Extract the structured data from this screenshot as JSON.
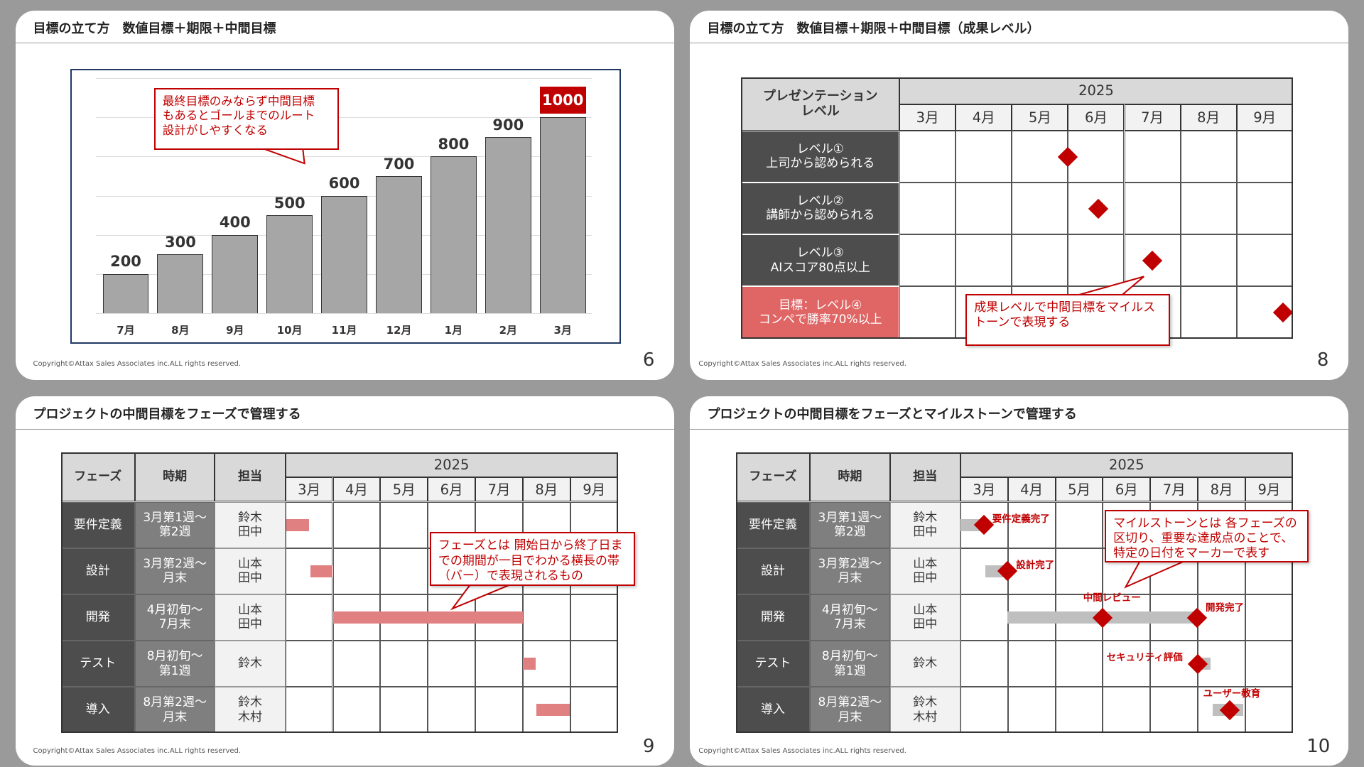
{
  "colors": {
    "accent": "#c00000",
    "dark_cell": "#4d4d4d",
    "mid_cell": "#7f7f7f",
    "light_cell": "#f2f2f2",
    "header_cell": "#d9d9d9",
    "goal_row": "#e06666",
    "phase_bar_pink": "#e08080",
    "phase_bar_gray": "#bfbfbf",
    "chart_bar": "#a6a6a6"
  },
  "slides": [
    {
      "title": "目標の立て方　数値目標＋期限＋中間目標",
      "copyright": "Copyright©Attax Sales Associates inc.ALL rights reserved.",
      "page": "6",
      "callout": "最終目標のみならず中間目標\nもあるとゴールまでのルート\n設計がしやすくなる"
    },
    {
      "title": "目標の立て方　数値目標＋期限＋中間目標（成果レベル）",
      "copyright": "Copyright©Attax Sales Associates inc.ALL rights reserved.",
      "page": "8",
      "callout": "成果レベルで中間目標をマイルス\nトーンで表現する",
      "table": {
        "corner": "プレゼンテーション\nレベル",
        "year": "2025",
        "months": [
          "3月",
          "4月",
          "5月",
          "6月",
          "7月",
          "8月",
          "9月"
        ],
        "rows": [
          {
            "label": "レベル①\n上司から認められる",
            "milestone": 5.99,
            "goal": false
          },
          {
            "label": "レベル②\n講師から認められる",
            "milestone": 6.53,
            "goal": false
          },
          {
            "label": "レベル③\nAIスコア80点以上",
            "milestone": 7.5,
            "goal": false
          },
          {
            "label": "目標：レベル④\nコンペで勝率70%以上",
            "milestone": 9.82,
            "goal": true
          }
        ]
      }
    },
    {
      "title": "プロジェクトの中間目標をフェーズで管理する",
      "copyright": "Copyright©Attax Sales Associates inc.ALL rights reserved.",
      "page": "9",
      "callout": "フェーズとは 開始日から終了日ま\nでの期間が一目でわかる横長の帯\n（バー）で表現されるもの",
      "table": {
        "headers": [
          "フェーズ",
          "時期",
          "担当"
        ],
        "year": "2025",
        "months": [
          "3月",
          "4月",
          "5月",
          "6月",
          "7月",
          "8月",
          "9月"
        ],
        "rows": [
          {
            "phase": "要件定義",
            "period": "3月第1週～\n第2週",
            "owner": "鈴木\n田中",
            "bar": [
              3.02,
              3.5
            ]
          },
          {
            "phase": "設計",
            "period": "3月第2週～\n月末",
            "owner": "山本\n田中",
            "bar": [
              3.53,
              3.99
            ]
          },
          {
            "phase": "開発",
            "period": "4月初旬～\n7月末",
            "owner": "山本\n田中",
            "bar": [
              4.0,
              8.0
            ]
          },
          {
            "phase": "テスト",
            "period": "8月初旬～\n第1週",
            "owner": "鈴木",
            "bar": [
              8.0,
              8.27
            ]
          },
          {
            "phase": "導入",
            "period": "8月第2週～\n月末",
            "owner": "鈴木\n木村",
            "bar": [
              8.29,
              8.99
            ]
          }
        ]
      }
    },
    {
      "title": "プロジェクトの中間目標をフェーズとマイルストーンで管理する",
      "copyright": "Copyright©Attax Sales Associates inc.ALL rights reserved.",
      "page": "10",
      "callout": "マイルストーンとは 各フェーズの\n区切り、重要な達成点のことで、\n特定の日付をマーカーで表す",
      "table": {
        "headers": [
          "フェーズ",
          "時期",
          "担当"
        ],
        "year": "2025",
        "months": [
          "3月",
          "4月",
          "5月",
          "6月",
          "7月",
          "8月",
          "9月"
        ],
        "rows": [
          {
            "phase": "要件定義",
            "period": "3月第1週～\n第2週",
            "owner": "鈴木\n田中",
            "bar": [
              3.0,
              3.49
            ],
            "milestones": [
              {
                "at": 3.49,
                "label": "要件定義完了"
              }
            ]
          },
          {
            "phase": "設計",
            "period": "3月第2週～\n月末",
            "owner": "山本\n田中",
            "bar": [
              3.53,
              3.99
            ],
            "milestones": [
              {
                "at": 3.99,
                "label": "設計完了"
              }
            ]
          },
          {
            "phase": "開発",
            "period": "4月初旬～\n7月末",
            "owner": "山本\n田中",
            "bar": [
              3.99,
              7.98
            ],
            "milestones": [
              {
                "at": 5.99,
                "label": "中間レビュー"
              },
              {
                "at": 7.98,
                "label": "開発完了"
              }
            ]
          },
          {
            "phase": "テスト",
            "period": "8月初旬～\n第1週",
            "owner": "鈴木",
            "bar": [
              7.98,
              8.27
            ],
            "milestones": [
              {
                "at": 8.0,
                "label": "セキュリティ評価"
              }
            ]
          },
          {
            "phase": "導入",
            "period": "8月第2週～\n月末",
            "owner": "鈴木\n木村",
            "bar": [
              8.31,
              8.95
            ],
            "milestones": [
              {
                "at": 8.66,
                "label": "ユーザー教育"
              }
            ]
          }
        ]
      }
    }
  ],
  "chart_data": {
    "type": "bar",
    "categories": [
      "7月",
      "8月",
      "9月",
      "10月",
      "11月",
      "12月",
      "1月",
      "2月",
      "3月"
    ],
    "values": [
      200,
      300,
      400,
      500,
      600,
      700,
      800,
      900,
      1000
    ],
    "data_labels": [
      "200",
      "300",
      "400",
      "500",
      "600",
      "700",
      "800",
      "900",
      "1000"
    ],
    "highlight_last": true,
    "ylim": [
      0,
      1200
    ],
    "grid": true,
    "title": "",
    "xlabel": "",
    "ylabel": ""
  }
}
